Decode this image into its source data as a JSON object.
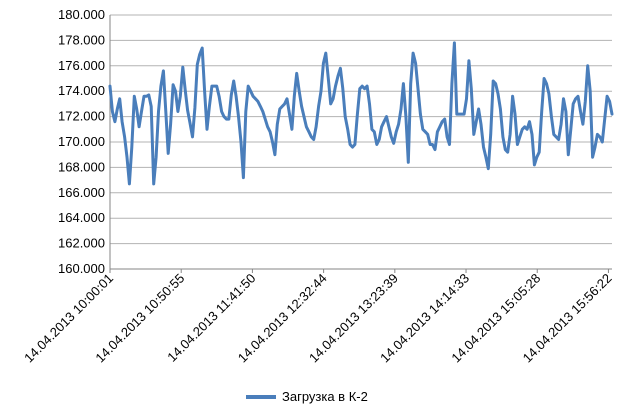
{
  "chart_data": {
    "type": "line",
    "title": "",
    "xlabel": "",
    "ylabel": "",
    "ylim": [
      160,
      180
    ],
    "y_ticks": [
      "160.000",
      "162.000",
      "164.000",
      "166.000",
      "168.000",
      "170.000",
      "172.000",
      "174.000",
      "176.000",
      "178.000",
      "180.000"
    ],
    "x_tick_labels": [
      "14.04.2013 10:00:01",
      "14.04.2013 10:50:55",
      "14.04.2013 11:41:50",
      "14.04.2013 12:32:44",
      "14.04.2013 13:23:39",
      "14.04.2013 14:14:33",
      "14.04.2013 15:05:28",
      "14.04.2013 15:56:22"
    ],
    "x_range_minutes": [
      0,
      360
    ],
    "grid": true,
    "legend_position": "bottom",
    "series": [
      {
        "name": "Загрузка в К-2",
        "color": "#4a7ebb",
        "values": [
          174.4,
          172.4,
          171.6,
          172.6,
          173.4,
          171.6,
          170.4,
          168.8,
          166.7,
          169.6,
          173.6,
          172.6,
          171.2,
          172.4,
          173.6,
          173.6,
          173.7,
          172.8,
          166.7,
          168.8,
          172.4,
          174.4,
          175.6,
          172.4,
          169.1,
          171.4,
          174.5,
          174.0,
          172.4,
          173.6,
          175.9,
          174.1,
          172.5,
          171.5,
          170.4,
          172.7,
          176.1,
          176.9,
          177.4,
          174.0,
          171.0,
          172.8,
          174.4,
          174.4,
          174.4,
          173.6,
          172.4,
          172.0,
          171.8,
          171.8,
          173.7,
          174.8,
          173.6,
          172.0,
          170.0,
          167.2,
          172.4,
          174.4,
          174.0,
          173.6,
          173.4,
          173.2,
          172.8,
          172.4,
          171.8,
          171.2,
          170.8,
          170.0,
          169.0,
          171.4,
          172.6,
          172.8,
          173.0,
          173.4,
          172.2,
          171.0,
          173.6,
          175.4,
          174.0,
          172.8,
          172.0,
          171.2,
          170.8,
          170.4,
          170.2,
          171.2,
          172.8,
          174.0,
          176.2,
          177.0,
          175.0,
          173.0,
          173.4,
          174.4,
          175.2,
          175.8,
          174.2,
          172.0,
          171.0,
          169.8,
          169.6,
          169.8,
          172.2,
          174.2,
          174.4,
          174.2,
          174.4,
          173.0,
          171.0,
          170.8,
          169.8,
          170.2,
          171.2,
          171.6,
          172.0,
          171.2,
          170.4,
          169.9,
          170.8,
          171.4,
          172.6,
          174.6,
          172.0,
          168.4,
          174.6,
          177.0,
          176.2,
          174.2,
          172.2,
          171.0,
          170.8,
          170.6,
          169.8,
          169.8,
          169.4,
          170.8,
          171.2,
          171.6,
          171.8,
          170.4,
          169.8,
          174.6,
          177.8,
          172.2,
          172.2,
          172.2,
          172.2,
          173.4,
          176.4,
          174.2,
          170.6,
          171.6,
          172.6,
          171.4,
          169.6,
          168.8,
          167.9,
          170.6,
          174.8,
          174.6,
          173.8,
          172.6,
          170.4,
          169.4,
          169.2,
          170.6,
          173.6,
          172.2,
          169.8,
          170.4,
          171.0,
          171.2,
          171.0,
          171.6,
          170.6,
          168.2,
          168.8,
          169.2,
          172.4,
          175.0,
          174.6,
          173.8,
          172.0,
          170.6,
          170.4,
          170.2,
          171.4,
          173.4,
          172.4,
          169.0,
          171.0,
          173.0,
          173.4,
          173.6,
          172.4,
          171.4,
          173.2,
          176.0,
          174.0,
          168.8,
          169.6,
          170.6,
          170.4,
          170.0,
          171.8,
          173.6,
          173.2,
          172.2
        ]
      }
    ]
  }
}
